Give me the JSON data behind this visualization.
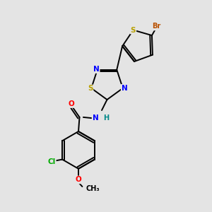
{
  "bg_color": "#e4e4e4",
  "atom_colors": {
    "C": "#000000",
    "N": "#0000ff",
    "S": "#b8a000",
    "Br": "#b85000",
    "Cl": "#00aa00",
    "O": "#ff0000",
    "H": "#008888"
  },
  "bond_color": "#000000",
  "font_size": 7.5,
  "line_width": 1.4
}
